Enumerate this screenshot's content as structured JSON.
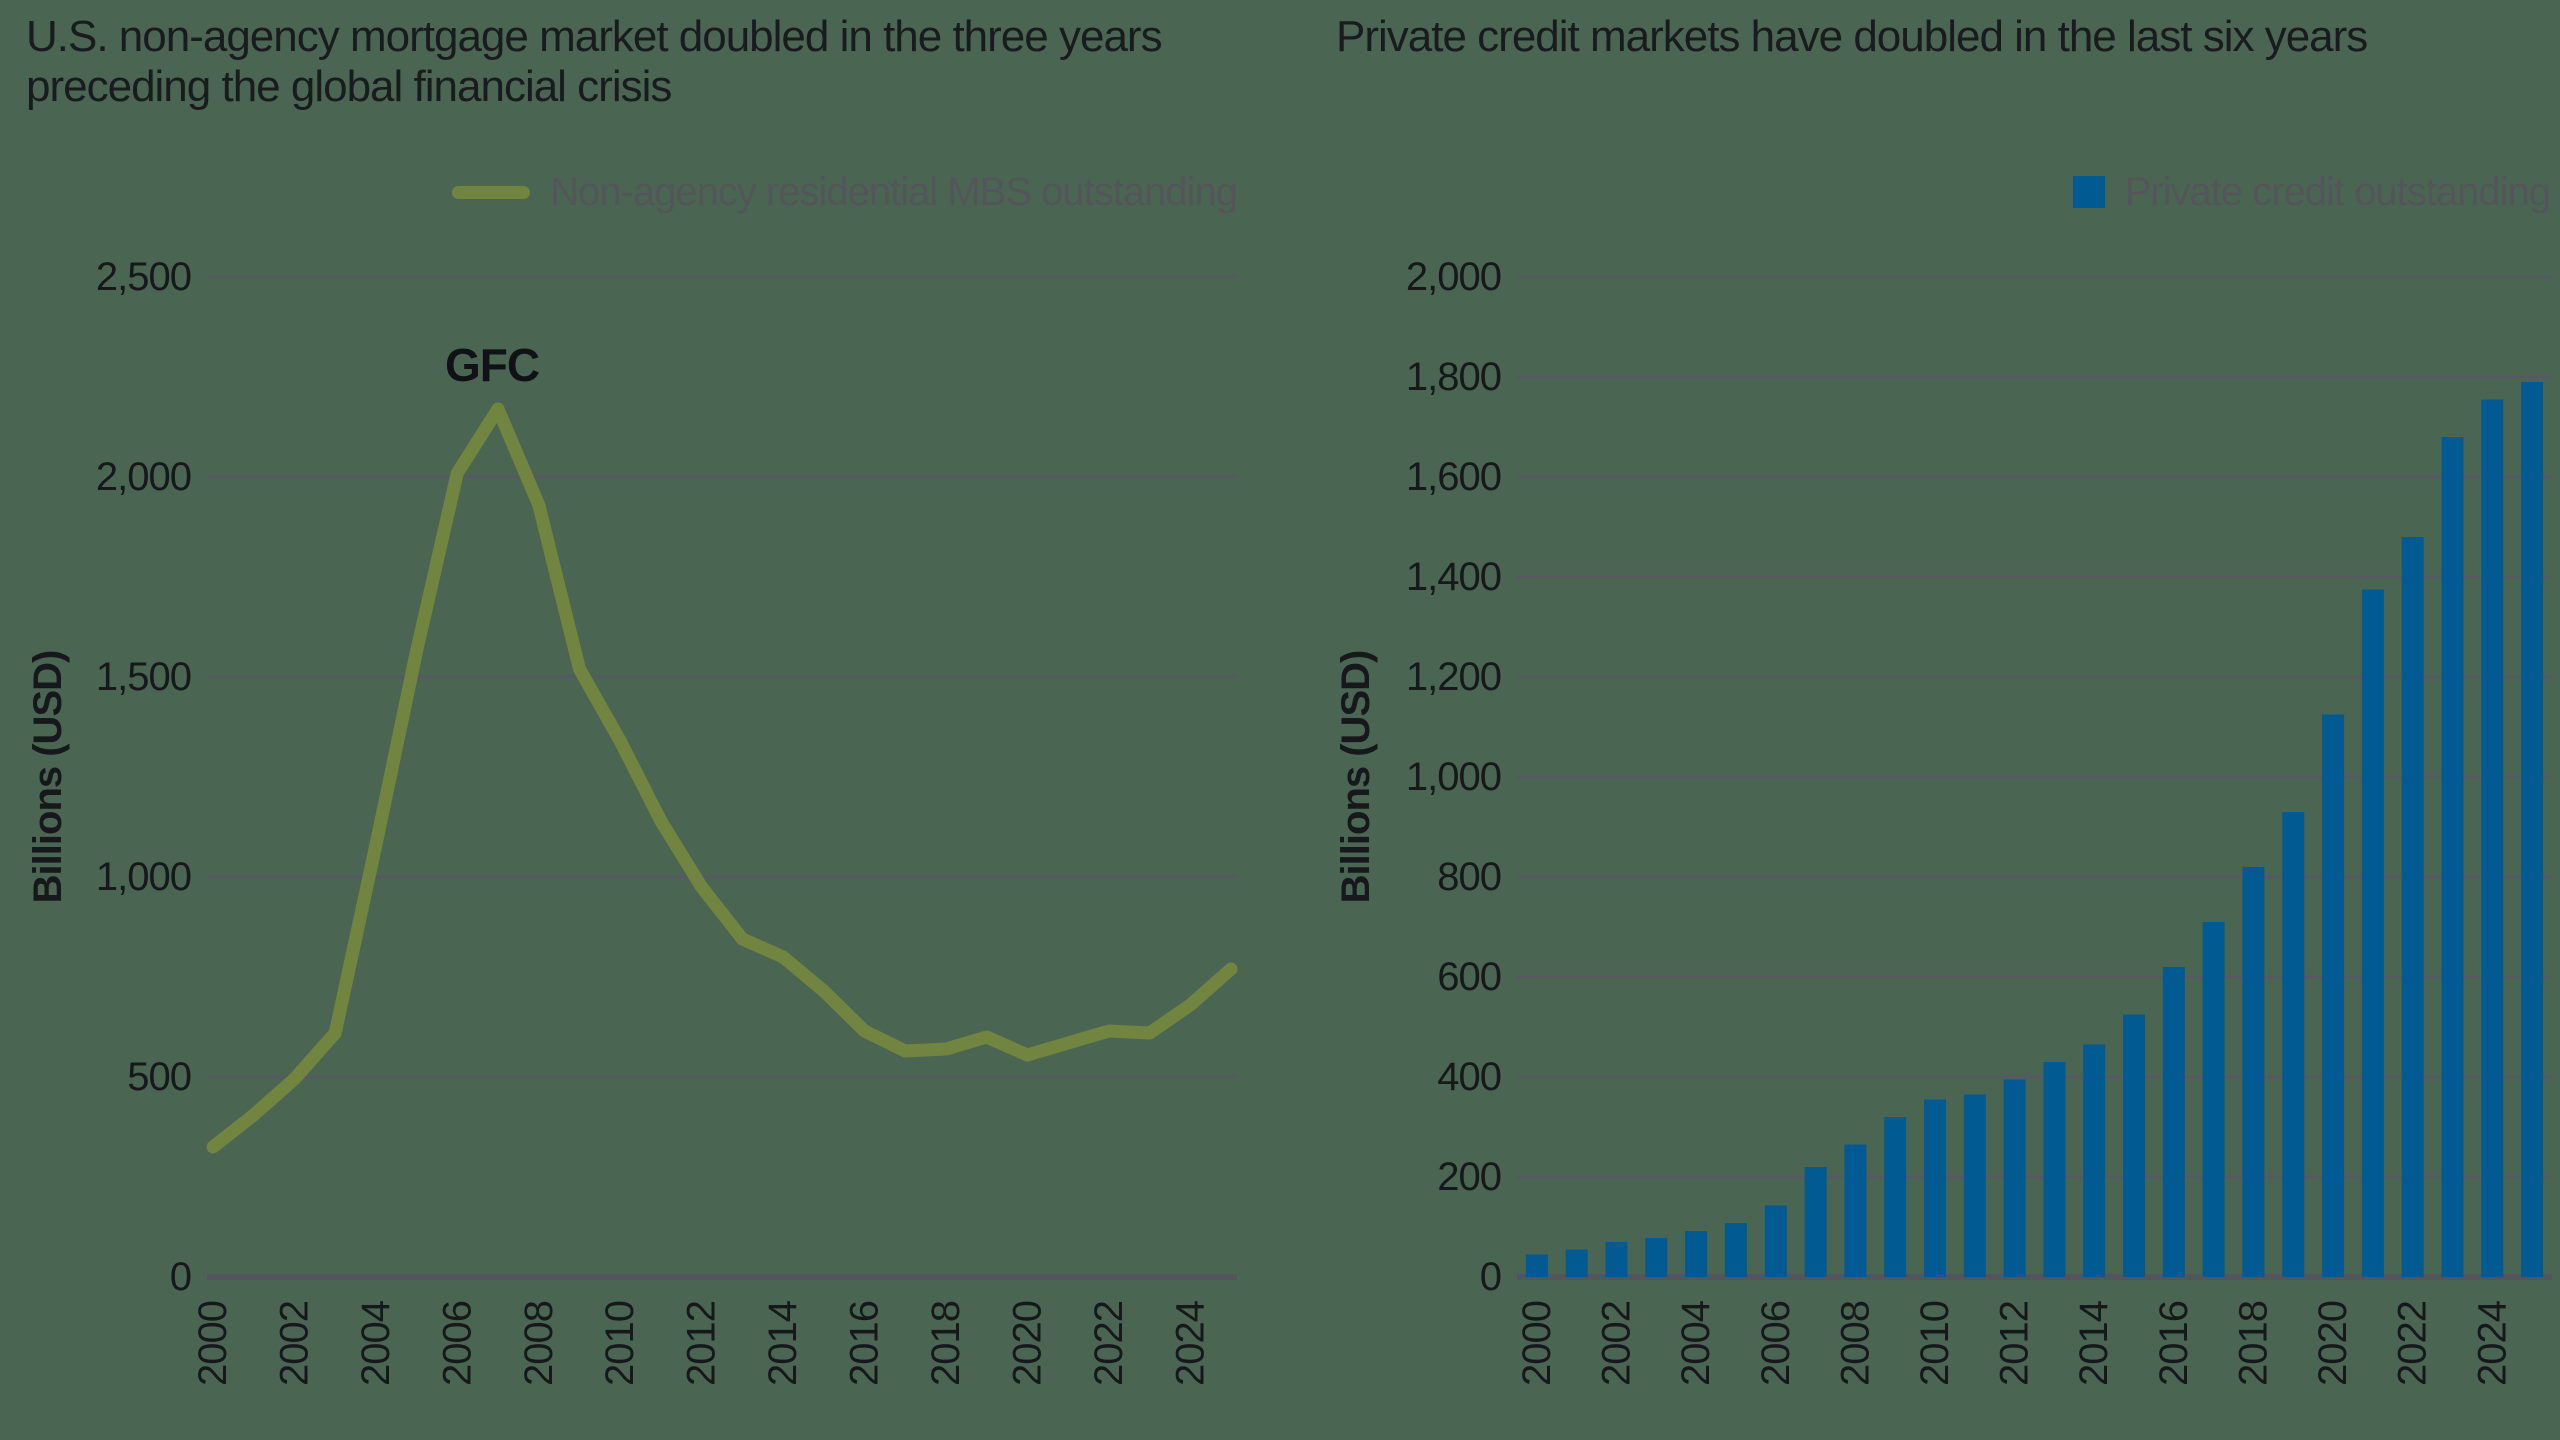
{
  "page": {
    "background_color": "#4A6652",
    "grid_color": "#565862",
    "axis_line_color": "#54555C",
    "tick_text_color": "#17181C",
    "title_text_color": "#1A1B1F",
    "legend_text_color": "#54555A"
  },
  "chart_data": [
    {
      "type": "line",
      "title": "U.S. non-agency mortgage market doubled in the three years preceding the global financial crisis",
      "title_lines": [
        "U.S. non-agency mortgage market doubled in the three years",
        "preceding the global financial crisis"
      ],
      "legend": {
        "label": "Non-agency residential MBS outstanding",
        "swatch": "line"
      },
      "ylabel": "Billions (USD)",
      "xlabel": "",
      "line_color": "#718540",
      "grid": true,
      "legend_position": "top-right",
      "annotation": {
        "text": "GFC",
        "year": 2007
      },
      "ylim": [
        0,
        2500
      ],
      "ytick_values": [
        0,
        500,
        1000,
        1500,
        2000,
        2500
      ],
      "yticks": [
        "0",
        "500",
        "1,000",
        "1,500",
        "2,000",
        "2,500"
      ],
      "xtick_labels": [
        "2000",
        "2002",
        "2004",
        "2006",
        "2008",
        "2010",
        "2012",
        "2014",
        "2016",
        "2018",
        "2020",
        "2022",
        "2024"
      ],
      "x": [
        2000,
        2001,
        2002,
        2003,
        2004,
        2005,
        2006,
        2007,
        2008,
        2009,
        2010,
        2011,
        2012,
        2013,
        2014,
        2015,
        2016,
        2017,
        2018,
        2019,
        2020,
        2021,
        2022,
        2023,
        2024,
        2025
      ],
      "values": [
        325,
        405,
        495,
        610,
        1080,
        1565,
        2010,
        2170,
        1930,
        1520,
        1340,
        1140,
        975,
        845,
        800,
        715,
        615,
        565,
        570,
        600,
        555,
        585,
        615,
        610,
        680,
        770
      ]
    },
    {
      "type": "bar",
      "title": "Private credit markets have doubled in the last six years",
      "title_lines": [
        "Private credit markets have doubled in the last six years"
      ],
      "legend": {
        "label": "Private credit outstanding",
        "swatch": "square"
      },
      "ylabel": "Billions (USD)",
      "xlabel": "",
      "bar_color": "#015A92",
      "grid": true,
      "legend_position": "top-right",
      "ylim": [
        0,
        2000
      ],
      "ytick_values": [
        0,
        200,
        400,
        600,
        800,
        1000,
        1200,
        1400,
        1600,
        1800,
        2000
      ],
      "yticks": [
        "0",
        "200",
        "400",
        "600",
        "800",
        "1,000",
        "1,200",
        "1,400",
        "1,600",
        "1,800",
        "2,000"
      ],
      "xtick_labels": [
        "2000",
        "2002",
        "2004",
        "2006",
        "2008",
        "2010",
        "2012",
        "2014",
        "2016",
        "2018",
        "2020",
        "2022",
        "2024"
      ],
      "x": [
        2000,
        2001,
        2002,
        2003,
        2004,
        2005,
        2006,
        2007,
        2008,
        2009,
        2010,
        2011,
        2012,
        2013,
        2014,
        2015,
        2016,
        2017,
        2018,
        2019,
        2020,
        2021,
        2022,
        2023,
        2024,
        2025
      ],
      "values": [
        45,
        55,
        70,
        78,
        92,
        108,
        143,
        220,
        265,
        320,
        355,
        365,
        395,
        430,
        465,
        525,
        620,
        710,
        820,
        930,
        1125,
        1375,
        1480,
        1680,
        1755,
        1790
      ]
    }
  ]
}
